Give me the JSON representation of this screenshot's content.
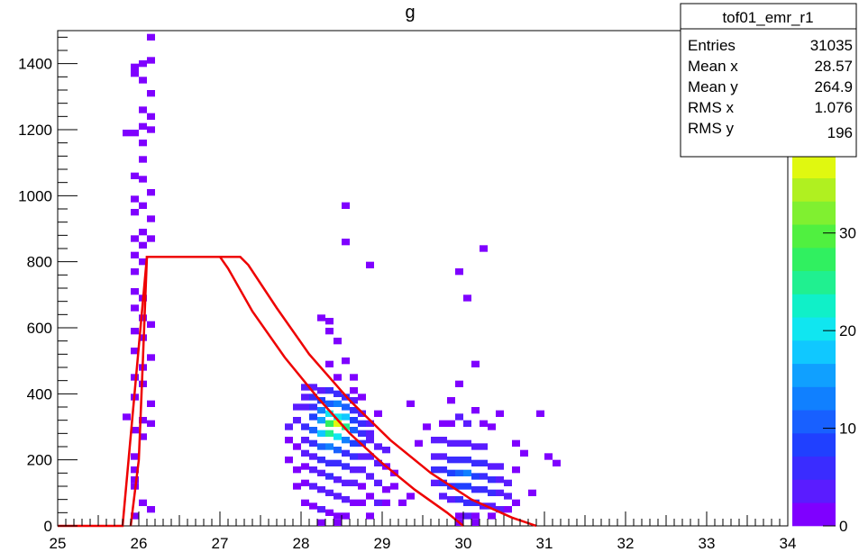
{
  "chart_data": {
    "type": "heatmap",
    "title": "g",
    "xlabel": "",
    "ylabel": "",
    "xlim": [
      25,
      34
    ],
    "ylim": [
      0,
      1500
    ],
    "x_ticks": [
      25,
      26,
      27,
      28,
      29,
      30,
      31,
      32,
      33,
      34
    ],
    "y_ticks": [
      0,
      200,
      400,
      600,
      800,
      1000,
      1200,
      1400
    ],
    "bin_width_x": 0.1,
    "bin_height_y": 20,
    "color_scale": {
      "range": [
        0,
        38
      ],
      "ticks": [
        0,
        10,
        20,
        30
      ],
      "colors": [
        "#7f00ff",
        "#5a1cff",
        "#3a2cff",
        "#2040ff",
        "#1860ff",
        "#1080ff",
        "#10a0ff",
        "#10c8ff",
        "#10e6f0",
        "#10f0c8",
        "#20f090",
        "#30f060",
        "#50f040",
        "#80f030",
        "#b0f020",
        "#e0f810"
      ]
    },
    "stats_box": {
      "name": "tof01_emr_r1",
      "rows": [
        {
          "label": "Entries",
          "value": "31035"
        },
        {
          "label": "Mean x",
          "value": "28.57"
        },
        {
          "label": "Mean y",
          "value": "264.9"
        },
        {
          "label": "RMS x",
          "value": "1.076"
        },
        {
          "label": "RMS y",
          "value": "196"
        }
      ]
    },
    "cut_curves": [
      {
        "color": "#ee0000",
        "points": [
          [
            25.0,
            0
          ],
          [
            25.8,
            0
          ],
          [
            26.1,
            815
          ],
          [
            27.0,
            815
          ],
          [
            27.1,
            780
          ],
          [
            27.4,
            650
          ],
          [
            27.8,
            510
          ],
          [
            28.2,
            390
          ],
          [
            28.6,
            280
          ],
          [
            29.0,
            190
          ],
          [
            29.4,
            110
          ],
          [
            29.8,
            40
          ],
          [
            30.0,
            0
          ]
        ]
      },
      {
        "color": "#ee0000",
        "points": [
          [
            25.9,
            0
          ],
          [
            26.0,
            200
          ],
          [
            26.05,
            500
          ],
          [
            26.1,
            815
          ],
          [
            27.25,
            815
          ],
          [
            27.35,
            790
          ],
          [
            27.7,
            660
          ],
          [
            28.1,
            520
          ],
          [
            28.6,
            380
          ],
          [
            29.1,
            260
          ],
          [
            29.6,
            160
          ],
          [
            30.1,
            80
          ],
          [
            30.6,
            25
          ],
          [
            30.9,
            0
          ]
        ]
      }
    ],
    "bins": [
      [
        26.0,
        1490,
        2
      ],
      [
        26.1,
        1470,
        2
      ],
      [
        25.9,
        1380,
        2
      ],
      [
        26.0,
        1390,
        2
      ],
      [
        26.1,
        1400,
        2
      ],
      [
        25.9,
        1360,
        2
      ],
      [
        26.0,
        1340,
        2
      ],
      [
        26.1,
        1300,
        2
      ],
      [
        26.0,
        1250,
        2
      ],
      [
        26.1,
        1230,
        2
      ],
      [
        26.0,
        1200,
        2
      ],
      [
        25.9,
        1180,
        2
      ],
      [
        26.1,
        1190,
        2
      ],
      [
        25.8,
        1180,
        2
      ],
      [
        26.0,
        1150,
        2
      ],
      [
        26.0,
        1100,
        2
      ],
      [
        25.9,
        1050,
        2
      ],
      [
        26.0,
        1040,
        2
      ],
      [
        26.1,
        1000,
        2
      ],
      [
        25.9,
        980,
        2
      ],
      [
        26.0,
        960,
        2
      ],
      [
        25.9,
        940,
        2
      ],
      [
        26.1,
        920,
        2
      ],
      [
        26.0,
        880,
        2
      ],
      [
        25.9,
        860,
        2
      ],
      [
        26.1,
        860,
        2
      ],
      [
        26.0,
        840,
        2
      ],
      [
        25.9,
        810,
        2
      ],
      [
        26.0,
        790,
        2
      ],
      [
        25.9,
        760,
        2
      ],
      [
        25.9,
        700,
        2
      ],
      [
        26.0,
        680,
        2
      ],
      [
        25.9,
        650,
        2
      ],
      [
        26.0,
        620,
        2
      ],
      [
        26.1,
        600,
        2
      ],
      [
        25.9,
        580,
        2
      ],
      [
        26.0,
        560,
        2
      ],
      [
        25.9,
        520,
        2
      ],
      [
        26.1,
        500,
        2
      ],
      [
        26.0,
        470,
        2
      ],
      [
        25.9,
        440,
        2
      ],
      [
        26.0,
        420,
        2
      ],
      [
        25.9,
        380,
        2
      ],
      [
        26.1,
        360,
        2
      ],
      [
        25.8,
        320,
        2
      ],
      [
        26.0,
        310,
        2
      ],
      [
        26.1,
        300,
        2
      ],
      [
        25.9,
        280,
        2
      ],
      [
        26.0,
        260,
        2
      ],
      [
        25.9,
        200,
        2
      ],
      [
        25.9,
        160,
        2
      ],
      [
        25.9,
        130,
        2
      ],
      [
        25.9,
        110,
        2
      ],
      [
        26.0,
        60,
        2
      ],
      [
        26.1,
        40,
        2
      ],
      [
        25.9,
        20,
        2
      ],
      [
        28.5,
        960,
        2
      ],
      [
        28.5,
        850,
        2
      ],
      [
        30.2,
        830,
        2
      ],
      [
        29.9,
        760,
        2
      ],
      [
        30.0,
        680,
        2
      ],
      [
        28.8,
        780,
        2
      ],
      [
        28.3,
        610,
        2
      ],
      [
        28.2,
        620,
        2
      ],
      [
        28.3,
        580,
        2
      ],
      [
        28.4,
        550,
        2
      ],
      [
        28.3,
        480,
        2
      ],
      [
        28.4,
        440,
        2
      ],
      [
        28.6,
        440,
        2
      ],
      [
        28.6,
        400,
        2
      ],
      [
        28.5,
        490,
        2
      ],
      [
        28.7,
        380,
        2
      ],
      [
        29.3,
        360,
        2
      ],
      [
        29.9,
        420,
        2
      ],
      [
        30.1,
        480,
        2
      ],
      [
        28.9,
        330,
        2
      ],
      [
        28.7,
        330,
        2
      ],
      [
        29.8,
        370,
        2
      ],
      [
        30.4,
        330,
        2
      ],
      [
        30.9,
        330,
        2
      ],
      [
        30.6,
        160,
        2
      ],
      [
        31.0,
        200,
        2
      ],
      [
        31.1,
        180,
        2
      ],
      [
        29.4,
        240,
        2
      ],
      [
        29.8,
        300,
        2
      ],
      [
        29.2,
        60,
        2
      ],
      [
        28.0,
        410,
        3
      ],
      [
        28.1,
        410,
        3
      ],
      [
        28.2,
        400,
        4
      ],
      [
        28.3,
        400,
        5
      ],
      [
        28.4,
        390,
        6
      ],
      [
        28.5,
        380,
        6
      ],
      [
        28.6,
        370,
        4
      ],
      [
        28.0,
        380,
        4
      ],
      [
        28.1,
        380,
        5
      ],
      [
        28.2,
        370,
        8
      ],
      [
        28.3,
        360,
        11
      ],
      [
        28.4,
        360,
        12
      ],
      [
        28.5,
        350,
        10
      ],
      [
        28.6,
        340,
        7
      ],
      [
        28.7,
        330,
        4
      ],
      [
        28.0,
        350,
        4
      ],
      [
        28.1,
        350,
        7
      ],
      [
        28.2,
        340,
        12
      ],
      [
        28.3,
        330,
        19
      ],
      [
        28.4,
        320,
        20
      ],
      [
        28.5,
        320,
        17
      ],
      [
        28.6,
        310,
        9
      ],
      [
        28.7,
        300,
        5
      ],
      [
        28.1,
        320,
        9
      ],
      [
        28.2,
        310,
        15
      ],
      [
        28.3,
        300,
        28
      ],
      [
        28.4,
        300,
        38
      ],
      [
        28.5,
        290,
        26
      ],
      [
        28.6,
        280,
        11
      ],
      [
        28.7,
        270,
        5
      ],
      [
        28.8,
        270,
        3
      ],
      [
        28.0,
        290,
        5
      ],
      [
        28.1,
        280,
        10
      ],
      [
        28.2,
        270,
        18
      ],
      [
        28.3,
        270,
        24
      ],
      [
        28.4,
        260,
        20
      ],
      [
        28.5,
        250,
        12
      ],
      [
        28.6,
        240,
        8
      ],
      [
        28.7,
        240,
        5
      ],
      [
        28.0,
        250,
        4
      ],
      [
        28.1,
        240,
        7
      ],
      [
        28.2,
        230,
        11
      ],
      [
        28.3,
        230,
        12
      ],
      [
        28.4,
        220,
        10
      ],
      [
        28.5,
        210,
        7
      ],
      [
        28.6,
        200,
        5
      ],
      [
        28.7,
        200,
        3
      ],
      [
        28.0,
        210,
        3
      ],
      [
        28.1,
        200,
        4
      ],
      [
        28.2,
        190,
        6
      ],
      [
        28.3,
        180,
        7
      ],
      [
        28.4,
        180,
        6
      ],
      [
        28.5,
        170,
        5
      ],
      [
        28.6,
        160,
        4
      ],
      [
        28.7,
        160,
        3
      ],
      [
        28.0,
        170,
        2
      ],
      [
        28.1,
        160,
        3
      ],
      [
        28.2,
        150,
        4
      ],
      [
        28.3,
        140,
        5
      ],
      [
        28.4,
        130,
        4
      ],
      [
        28.5,
        120,
        4
      ],
      [
        28.6,
        120,
        3
      ],
      [
        28.7,
        110,
        2
      ],
      [
        28.0,
        120,
        2
      ],
      [
        28.1,
        110,
        3
      ],
      [
        28.2,
        100,
        3
      ],
      [
        28.3,
        90,
        3
      ],
      [
        28.4,
        80,
        3
      ],
      [
        28.5,
        70,
        3
      ],
      [
        28.6,
        60,
        2
      ],
      [
        28.7,
        60,
        2
      ],
      [
        28.0,
        60,
        2
      ],
      [
        28.1,
        50,
        2
      ],
      [
        28.2,
        40,
        3
      ],
      [
        28.3,
        30,
        2
      ],
      [
        28.4,
        20,
        2
      ],
      [
        28.5,
        20,
        2
      ],
      [
        28.2,
        0,
        2
      ],
      [
        28.4,
        0,
        2
      ],
      [
        27.9,
        350,
        3
      ],
      [
        27.9,
        310,
        3
      ],
      [
        27.8,
        290,
        3
      ],
      [
        27.8,
        250,
        2
      ],
      [
        27.9,
        230,
        2
      ],
      [
        27.8,
        190,
        2
      ],
      [
        27.9,
        160,
        2
      ],
      [
        27.9,
        110,
        2
      ],
      [
        28.8,
        300,
        3
      ],
      [
        28.8,
        250,
        4
      ],
      [
        28.9,
        230,
        4
      ],
      [
        29.0,
        220,
        3
      ],
      [
        28.8,
        200,
        3
      ],
      [
        28.9,
        180,
        3
      ],
      [
        29.0,
        170,
        2
      ],
      [
        29.1,
        150,
        2
      ],
      [
        28.8,
        140,
        3
      ],
      [
        28.9,
        120,
        3
      ],
      [
        29.0,
        100,
        2
      ],
      [
        28.8,
        80,
        2
      ],
      [
        28.9,
        60,
        3
      ],
      [
        29.0,
        60,
        2
      ],
      [
        28.8,
        20,
        2
      ],
      [
        29.1,
        110,
        2
      ],
      [
        29.6,
        250,
        3
      ],
      [
        29.7,
        250,
        3
      ],
      [
        29.8,
        240,
        3
      ],
      [
        29.9,
        240,
        3
      ],
      [
        30.0,
        240,
        3
      ],
      [
        30.1,
        230,
        3
      ],
      [
        30.2,
        230,
        3
      ],
      [
        29.6,
        200,
        4
      ],
      [
        29.7,
        200,
        4
      ],
      [
        29.8,
        190,
        5
      ],
      [
        29.9,
        190,
        6
      ],
      [
        30.0,
        190,
        6
      ],
      [
        30.1,
        180,
        6
      ],
      [
        30.2,
        180,
        5
      ],
      [
        30.3,
        170,
        4
      ],
      [
        30.4,
        170,
        3
      ],
      [
        29.6,
        160,
        5
      ],
      [
        29.7,
        160,
        6
      ],
      [
        29.8,
        150,
        8
      ],
      [
        29.9,
        150,
        10
      ],
      [
        30.0,
        150,
        12
      ],
      [
        30.1,
        140,
        9
      ],
      [
        30.2,
        140,
        7
      ],
      [
        30.3,
        130,
        5
      ],
      [
        30.4,
        130,
        4
      ],
      [
        30.5,
        120,
        3
      ],
      [
        29.6,
        120,
        4
      ],
      [
        29.7,
        120,
        6
      ],
      [
        29.8,
        110,
        7
      ],
      [
        29.9,
        110,
        8
      ],
      [
        30.0,
        110,
        8
      ],
      [
        30.1,
        100,
        7
      ],
      [
        30.2,
        100,
        6
      ],
      [
        30.3,
        90,
        5
      ],
      [
        30.4,
        90,
        4
      ],
      [
        30.5,
        80,
        3
      ],
      [
        29.7,
        80,
        4
      ],
      [
        29.8,
        70,
        4
      ],
      [
        29.9,
        70,
        5
      ],
      [
        30.0,
        60,
        5
      ],
      [
        30.1,
        60,
        5
      ],
      [
        30.2,
        50,
        4
      ],
      [
        30.3,
        50,
        3
      ],
      [
        30.4,
        40,
        3
      ],
      [
        30.5,
        40,
        2
      ],
      [
        29.9,
        20,
        2
      ],
      [
        30.0,
        20,
        3
      ],
      [
        30.1,
        20,
        2
      ],
      [
        30.3,
        20,
        2
      ],
      [
        30.1,
        0,
        2
      ],
      [
        29.9,
        0,
        2
      ],
      [
        30.0,
        300,
        3
      ],
      [
        30.2,
        300,
        2
      ],
      [
        30.3,
        290,
        2
      ],
      [
        29.5,
        290,
        2
      ],
      [
        29.7,
        300,
        2
      ],
      [
        30.1,
        340,
        2
      ],
      [
        29.9,
        320,
        3
      ],
      [
        30.6,
        240,
        2
      ],
      [
        30.7,
        210,
        2
      ],
      [
        30.8,
        90,
        2
      ],
      [
        30.6,
        60,
        2
      ],
      [
        29.3,
        80,
        2
      ]
    ]
  }
}
